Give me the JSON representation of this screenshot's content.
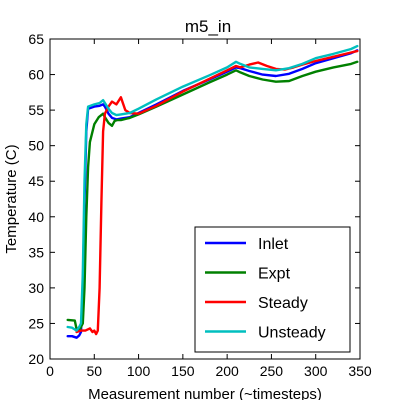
{
  "chart_data": {
    "type": "line",
    "title": "m5_in",
    "xlabel": "Measurement number (~timesteps)",
    "ylabel": "Temperature (C)",
    "xlim": [
      0,
      350
    ],
    "ylim": [
      20,
      65
    ],
    "xticks": [
      0,
      50,
      100,
      150,
      200,
      250,
      300,
      350
    ],
    "yticks": [
      20,
      25,
      30,
      35,
      40,
      45,
      50,
      55,
      60,
      65
    ],
    "grid": false,
    "legend_position": "lower-right",
    "series": [
      {
        "name": "Inlet",
        "color": "#0000ff",
        "points": [
          [
            20,
            23.2
          ],
          [
            25,
            23.2
          ],
          [
            30,
            23.0
          ],
          [
            33,
            23.3
          ],
          [
            35,
            23.8
          ],
          [
            37,
            30
          ],
          [
            39,
            42
          ],
          [
            41,
            52
          ],
          [
            43,
            55.2
          ],
          [
            50,
            55.5
          ],
          [
            56,
            55.6
          ],
          [
            60,
            55.8
          ],
          [
            62,
            55.5
          ],
          [
            66,
            54.5
          ],
          [
            70,
            53.9
          ],
          [
            75,
            53.7
          ],
          [
            80,
            53.8
          ],
          [
            90,
            54.0
          ],
          [
            100,
            54.6
          ],
          [
            120,
            55.8
          ],
          [
            150,
            57.7
          ],
          [
            180,
            59.3
          ],
          [
            200,
            60.4
          ],
          [
            210,
            61.0
          ],
          [
            215,
            60.9
          ],
          [
            225,
            60.5
          ],
          [
            240,
            60.0
          ],
          [
            255,
            59.8
          ],
          [
            270,
            60.1
          ],
          [
            285,
            60.8
          ],
          [
            300,
            61.6
          ],
          [
            320,
            62.3
          ],
          [
            340,
            63.0
          ],
          [
            347,
            63.4
          ]
        ]
      },
      {
        "name": "Expt",
        "color": "#008000",
        "points": [
          [
            20,
            25.5
          ],
          [
            28,
            25.4
          ],
          [
            30,
            24.2
          ],
          [
            33,
            24.0
          ],
          [
            35,
            24.5
          ],
          [
            37,
            25.0
          ],
          [
            39,
            30
          ],
          [
            41,
            40
          ],
          [
            43,
            47
          ],
          [
            45,
            50.5
          ],
          [
            50,
            53.0
          ],
          [
            55,
            54.0
          ],
          [
            60,
            54.5
          ],
          [
            62,
            54.0
          ],
          [
            66,
            53.2
          ],
          [
            70,
            52.8
          ],
          [
            73,
            53.5
          ],
          [
            76,
            53.6
          ],
          [
            80,
            53.6
          ],
          [
            90,
            53.9
          ],
          [
            100,
            54.4
          ],
          [
            120,
            55.5
          ],
          [
            150,
            57.2
          ],
          [
            180,
            58.9
          ],
          [
            200,
            60.0
          ],
          [
            210,
            60.6
          ],
          [
            215,
            60.3
          ],
          [
            225,
            59.8
          ],
          [
            240,
            59.3
          ],
          [
            255,
            59.0
          ],
          [
            270,
            59.1
          ],
          [
            285,
            59.8
          ],
          [
            300,
            60.4
          ],
          [
            320,
            61.0
          ],
          [
            340,
            61.5
          ],
          [
            347,
            61.8
          ]
        ]
      },
      {
        "name": "Steady",
        "color": "#ff0000",
        "points": [
          [
            30,
            23.8
          ],
          [
            35,
            24.0
          ],
          [
            40,
            24.0
          ],
          [
            45,
            24.3
          ],
          [
            48,
            23.8
          ],
          [
            50,
            24.0
          ],
          [
            52,
            23.5
          ],
          [
            54,
            24.0
          ],
          [
            56,
            30
          ],
          [
            58,
            42
          ],
          [
            60,
            52
          ],
          [
            62,
            54.5
          ],
          [
            66,
            55.5
          ],
          [
            70,
            56.2
          ],
          [
            75,
            55.8
          ],
          [
            80,
            56.8
          ],
          [
            85,
            55.0
          ],
          [
            90,
            54.6
          ],
          [
            100,
            54.5
          ],
          [
            120,
            55.6
          ],
          [
            150,
            57.6
          ],
          [
            180,
            59.4
          ],
          [
            200,
            60.6
          ],
          [
            210,
            61.2
          ],
          [
            215,
            61.0
          ],
          [
            225,
            61.4
          ],
          [
            235,
            61.7
          ],
          [
            245,
            61.2
          ],
          [
            255,
            60.8
          ],
          [
            265,
            60.7
          ],
          [
            275,
            61.0
          ],
          [
            285,
            61.4
          ],
          [
            300,
            61.9
          ],
          [
            320,
            62.5
          ],
          [
            340,
            63.1
          ],
          [
            347,
            63.3
          ]
        ]
      },
      {
        "name": "Unsteady",
        "color": "#00bfbf",
        "points": [
          [
            20,
            24.5
          ],
          [
            25,
            24.4
          ],
          [
            30,
            24.0
          ],
          [
            33,
            24.5
          ],
          [
            35,
            25.0
          ],
          [
            37,
            32
          ],
          [
            39,
            45
          ],
          [
            41,
            53
          ],
          [
            43,
            55.5
          ],
          [
            50,
            55.8
          ],
          [
            56,
            56.0
          ],
          [
            60,
            56.4
          ],
          [
            62,
            56.0
          ],
          [
            66,
            55.2
          ],
          [
            70,
            54.6
          ],
          [
            75,
            54.3
          ],
          [
            80,
            54.4
          ],
          [
            90,
            54.6
          ],
          [
            100,
            55.2
          ],
          [
            120,
            56.5
          ],
          [
            150,
            58.3
          ],
          [
            180,
            59.9
          ],
          [
            200,
            61.0
          ],
          [
            210,
            61.8
          ],
          [
            215,
            61.5
          ],
          [
            225,
            61.0
          ],
          [
            240,
            60.8
          ],
          [
            255,
            60.6
          ],
          [
            270,
            60.9
          ],
          [
            285,
            61.5
          ],
          [
            300,
            62.3
          ],
          [
            320,
            62.9
          ],
          [
            340,
            63.6
          ],
          [
            347,
            64.0
          ]
        ]
      }
    ]
  }
}
